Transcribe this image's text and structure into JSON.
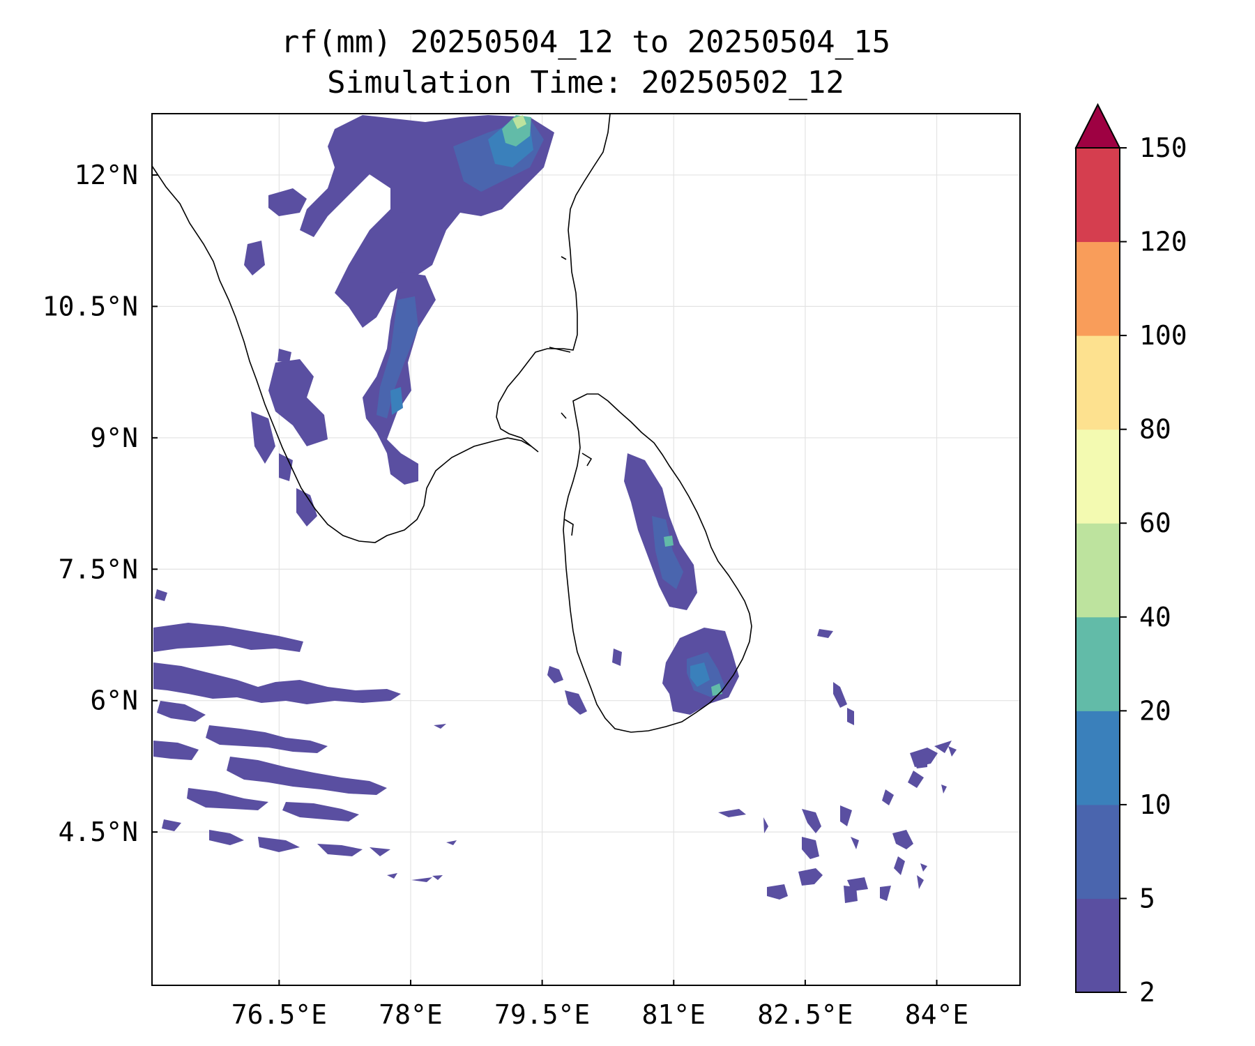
{
  "title": {
    "line1": "rf(mm) 20250504_12 to 20250504_15",
    "line2": "Simulation Time: 20250502_12"
  },
  "map": {
    "lon_range": [
      75.05,
      84.95
    ],
    "lat_range": [
      2.75,
      12.7
    ],
    "x_ticks": [
      {
        "value": 76.5,
        "label": "76.5°E"
      },
      {
        "value": 78.0,
        "label": "78°E"
      },
      {
        "value": 79.5,
        "label": "79.5°E"
      },
      {
        "value": 81.0,
        "label": "81°E"
      },
      {
        "value": 82.5,
        "label": "82.5°E"
      },
      {
        "value": 84.0,
        "label": "84°E"
      }
    ],
    "y_ticks": [
      {
        "value": 12.0,
        "label": "12°N"
      },
      {
        "value": 10.5,
        "label": "10.5°N"
      },
      {
        "value": 9.0,
        "label": "9°N"
      },
      {
        "value": 7.5,
        "label": "7.5°N"
      },
      {
        "value": 6.0,
        "label": "6°N"
      },
      {
        "value": 4.5,
        "label": "4.5°N"
      }
    ],
    "gridlines": true
  },
  "colorbar": {
    "levels": [
      2,
      5,
      10,
      20,
      40,
      60,
      80,
      100,
      120,
      150
    ],
    "labels": [
      "2",
      "5",
      "10",
      "20",
      "40",
      "60",
      "80",
      "100",
      "120",
      "150"
    ],
    "colors": [
      "#5a4fa1",
      "#4a65ae",
      "#3a80bb",
      "#62bba8",
      "#bde39e",
      "#f3fab1",
      "#fde18f",
      "#f99d5a",
      "#d53e4f"
    ],
    "extend_color": "#9e0142"
  },
  "chart_data": {
    "type": "heatmap",
    "title": "rf(mm) 20250504_12 to 20250504_15",
    "subtitle": "Simulation Time: 20250502_12",
    "xlabel": "",
    "ylabel": "",
    "xlim": [
      75.05,
      84.95
    ],
    "ylim": [
      2.75,
      12.7
    ],
    "colorbar_levels": [
      2,
      5,
      10,
      20,
      40,
      60,
      80,
      100,
      120,
      150
    ],
    "colorbar_extend": "max",
    "rain_areas": [
      {
        "lon": 77.6,
        "lat": 12.3,
        "value": 5
      },
      {
        "lon": 79.35,
        "lat": 12.55,
        "value": 40
      },
      {
        "lon": 78.95,
        "lat": 12.2,
        "value": 15
      },
      {
        "lon": 77.9,
        "lat": 10.3,
        "value": 5
      },
      {
        "lon": 77.8,
        "lat": 9.7,
        "value": 15
      },
      {
        "lon": 76.5,
        "lat": 9.8,
        "value": 5
      },
      {
        "lon": 77.9,
        "lat": 9.0,
        "value": 5
      },
      {
        "lon": 80.95,
        "lat": 8.1,
        "value": 25
      },
      {
        "lon": 80.75,
        "lat": 8.8,
        "value": 5
      },
      {
        "lon": 81.2,
        "lat": 6.6,
        "value": 15
      },
      {
        "lon": 81.5,
        "lat": 6.4,
        "value": 25
      },
      {
        "lon": 75.8,
        "lat": 6.5,
        "value": 5
      },
      {
        "lon": 76.0,
        "lat": 5.6,
        "value": 5
      },
      {
        "lon": 83.7,
        "lat": 4.8,
        "value": 5
      },
      {
        "lon": 83.4,
        "lat": 5.5,
        "value": 5
      }
    ]
  }
}
